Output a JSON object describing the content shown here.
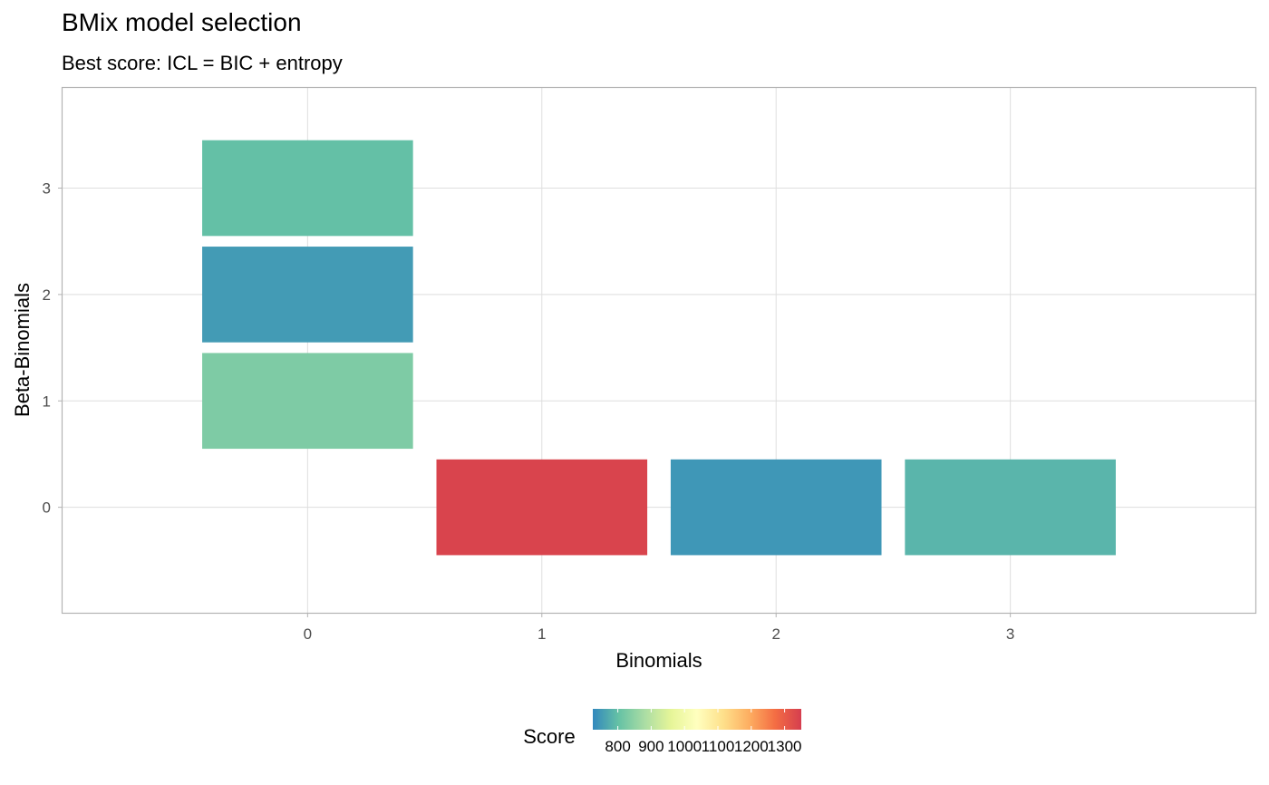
{
  "chart_data": {
    "type": "heatmap",
    "title": "BMix model selection",
    "subtitle": "Best score: ICL = BIC + entropy",
    "xlabel": "Binomials",
    "ylabel": "Beta-Binomials",
    "x_ticks": [
      "0",
      "1",
      "2",
      "3"
    ],
    "y_ticks": [
      "0",
      "1",
      "2",
      "3"
    ],
    "xlim": [
      -1.05,
      4.05
    ],
    "ylim": [
      -1.0,
      3.95
    ],
    "grid": true,
    "cells": [
      {
        "x": 0,
        "y": 1,
        "score": 830
      },
      {
        "x": 0,
        "y": 2,
        "score": 750
      },
      {
        "x": 0,
        "y": 3,
        "score": 800
      },
      {
        "x": 1,
        "y": 0,
        "score": 1340
      },
      {
        "x": 2,
        "y": 0,
        "score": 745
      },
      {
        "x": 3,
        "y": 0,
        "score": 785
      }
    ],
    "legend": {
      "title": "Score",
      "position": "bottom",
      "ticks": [
        "800",
        "900",
        "1000",
        "1100",
        "1200",
        "1300"
      ],
      "tick_values": [
        800,
        900,
        1000,
        1100,
        1200,
        1300
      ],
      "range": [
        725,
        1350
      ],
      "palette": [
        "#3288BD",
        "#66C2A5",
        "#ABDDA4",
        "#E6F598",
        "#FFFFBF",
        "#FEE08B",
        "#FDAE61",
        "#F46D43",
        "#D53E4F"
      ]
    },
    "colors": {
      "panel_border": "#b3b3b3",
      "grid": "#dedede",
      "tick_text": "#4d4d4d"
    }
  }
}
